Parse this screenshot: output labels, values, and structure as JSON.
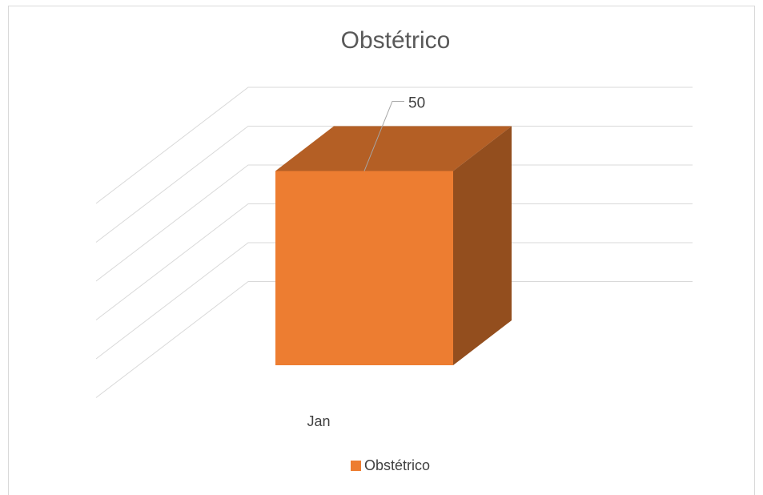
{
  "chart_data": {
    "type": "bar3d",
    "title": "Obstétrico",
    "categories": [
      "Jan"
    ],
    "series": [
      {
        "name": "Obstétrico",
        "color": "#ed7d31",
        "values": [
          50
        ]
      }
    ],
    "ylim": [
      0,
      60
    ],
    "yticks": [
      10,
      20,
      30,
      40,
      50,
      60
    ],
    "grid": true,
    "legend": "bottom"
  }
}
